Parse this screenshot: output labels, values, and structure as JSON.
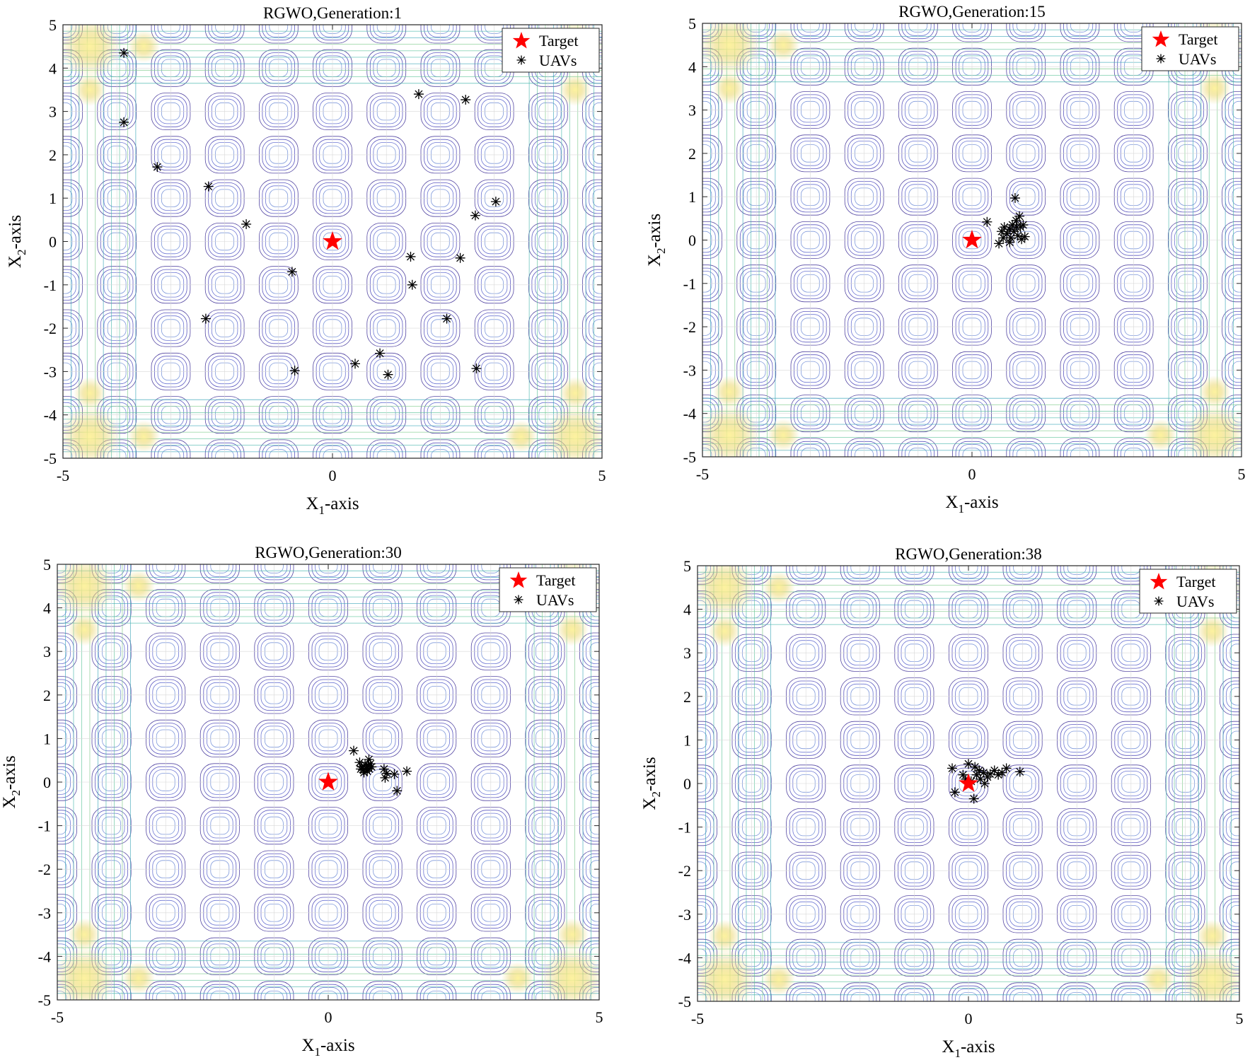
{
  "figure": {
    "axis_label_main": "-axis",
    "x_letter": "X",
    "x_sub": "1",
    "y_letter": "X",
    "y_sub": "2"
  },
  "chart_data": [
    {
      "type": "scatter",
      "title": "RGWO,Generation:1",
      "xlabel": "X1-axis",
      "ylabel": "X2-axis",
      "xlim": [
        -5,
        5
      ],
      "ylim": [
        -5,
        5
      ],
      "xticks": [
        -5,
        0,
        5
      ],
      "yticks": [
        5,
        4,
        3,
        2,
        1,
        0,
        -1,
        -2,
        -3,
        -4,
        -5
      ],
      "legend": {
        "position": "top-right",
        "entries": [
          "Target",
          "UAVs"
        ]
      },
      "background": "contour",
      "series": [
        {
          "name": "Target",
          "marker": "red-star",
          "color": "#ff0000",
          "points": [
            [
              0,
              0
            ]
          ]
        },
        {
          "name": "UAVs",
          "marker": "asterisk",
          "color": "#000000",
          "points": [
            [
              -3.87,
              4.35
            ],
            [
              -3.87,
              2.75
            ],
            [
              -3.25,
              1.72
            ],
            [
              -2.3,
              1.27
            ],
            [
              -1.6,
              0.4
            ],
            [
              -0.75,
              -0.7
            ],
            [
              -2.35,
              -1.78
            ],
            [
              -0.7,
              -2.98
            ],
            [
              0.42,
              -2.82
            ],
            [
              0.88,
              -2.58
            ],
            [
              1.03,
              -3.07
            ],
            [
              1.45,
              -0.35
            ],
            [
              1.48,
              -1.0
            ],
            [
              2.12,
              -1.78
            ],
            [
              2.37,
              -0.38
            ],
            [
              2.65,
              0.6
            ],
            [
              3.03,
              0.92
            ],
            [
              2.67,
              -2.93
            ],
            [
              1.6,
              3.4
            ],
            [
              2.47,
              3.27
            ]
          ]
        }
      ]
    },
    {
      "type": "scatter",
      "title": "RGWO,Generation:15",
      "xlabel": "X1-axis",
      "ylabel": "X2-axis",
      "xlim": [
        -5,
        5
      ],
      "ylim": [
        -5,
        5
      ],
      "xticks": [
        -5,
        0,
        5
      ],
      "yticks": [
        5,
        4,
        3,
        2,
        1,
        0,
        -1,
        -2,
        -3,
        -4,
        -5
      ],
      "legend": {
        "position": "top-right",
        "entries": [
          "Target",
          "UAVs"
        ]
      },
      "background": "contour",
      "series": [
        {
          "name": "Target",
          "marker": "red-star",
          "color": "#ff0000",
          "points": [
            [
              0,
              0
            ]
          ]
        },
        {
          "name": "UAVs",
          "marker": "asterisk",
          "color": "#000000",
          "points": [
            [
              0.8,
              0.97
            ],
            [
              0.28,
              0.42
            ],
            [
              0.5,
              -0.08
            ],
            [
              0.58,
              0.05
            ],
            [
              0.6,
              0.3
            ],
            [
              0.65,
              0.15
            ],
            [
              0.7,
              0.25
            ],
            [
              0.72,
              0.05
            ],
            [
              0.75,
              0.35
            ],
            [
              0.78,
              0.2
            ],
            [
              0.82,
              0.45
            ],
            [
              0.85,
              0.1
            ],
            [
              0.88,
              0.55
            ],
            [
              0.9,
              0.3
            ],
            [
              0.92,
              0.02
            ],
            [
              0.95,
              0.35
            ],
            [
              0.7,
              -0.05
            ],
            [
              0.83,
              0.3
            ],
            [
              0.98,
              0.08
            ],
            [
              0.55,
              0.2
            ]
          ]
        }
      ]
    },
    {
      "type": "scatter",
      "title": "RGWO,Generation:30",
      "xlabel": "X1-axis",
      "ylabel": "X2-axis",
      "xlim": [
        -5,
        5
      ],
      "ylim": [
        -5,
        5
      ],
      "xticks": [
        -5,
        0,
        5
      ],
      "yticks": [
        5,
        4,
        3,
        2,
        1,
        0,
        -1,
        -2,
        -3,
        -4,
        -5
      ],
      "legend": {
        "position": "top-right",
        "entries": [
          "Target",
          "UAVs"
        ]
      },
      "background": "contour",
      "series": [
        {
          "name": "Target",
          "marker": "red-star",
          "color": "#ff0000",
          "points": [
            [
              0,
              0
            ]
          ]
        },
        {
          "name": "UAVs",
          "marker": "asterisk",
          "color": "#000000",
          "points": [
            [
              0.47,
              0.72
            ],
            [
              0.58,
              0.45
            ],
            [
              0.62,
              0.35
            ],
            [
              0.65,
              0.28
            ],
            [
              0.68,
              0.4
            ],
            [
              0.7,
              0.32
            ],
            [
              0.72,
              0.25
            ],
            [
              0.74,
              0.38
            ],
            [
              0.76,
              0.3
            ],
            [
              0.78,
              0.42
            ],
            [
              0.8,
              0.35
            ],
            [
              0.66,
              0.22
            ],
            [
              1.03,
              0.3
            ],
            [
              1.05,
              0.1
            ],
            [
              1.08,
              0.2
            ],
            [
              1.22,
              0.18
            ],
            [
              1.27,
              -0.2
            ],
            [
              1.45,
              0.25
            ],
            [
              0.75,
              0.52
            ],
            [
              0.6,
              0.3
            ]
          ]
        }
      ]
    },
    {
      "type": "scatter",
      "title": "RGWO,Generation:38",
      "xlabel": "X1-axis",
      "ylabel": "X2-axis",
      "xlim": [
        -5,
        5
      ],
      "ylim": [
        -5,
        5
      ],
      "xticks": [
        -5,
        0,
        5
      ],
      "yticks": [
        5,
        4,
        3,
        2,
        1,
        0,
        -1,
        -2,
        -3,
        -4,
        -5
      ],
      "legend": {
        "position": "top-right",
        "entries": [
          "Target",
          "UAVs"
        ]
      },
      "background": "contour",
      "series": [
        {
          "name": "Target",
          "marker": "red-star",
          "color": "#ff0000",
          "points": [
            [
              0,
              0
            ]
          ]
        },
        {
          "name": "UAVs",
          "marker": "asterisk",
          "color": "#000000",
          "points": [
            [
              -0.3,
              0.35
            ],
            [
              -0.25,
              -0.2
            ],
            [
              -0.05,
              0.1
            ],
            [
              0.0,
              0.45
            ],
            [
              0.05,
              0.05
            ],
            [
              0.1,
              -0.35
            ],
            [
              0.15,
              0.2
            ],
            [
              0.2,
              0.3
            ],
            [
              0.22,
              0.1
            ],
            [
              0.28,
              0.25
            ],
            [
              0.3,
              0.0
            ],
            [
              0.35,
              0.15
            ],
            [
              0.4,
              0.22
            ],
            [
              0.48,
              0.3
            ],
            [
              0.55,
              0.2
            ],
            [
              0.62,
              0.25
            ],
            [
              0.7,
              0.35
            ],
            [
              0.95,
              0.27
            ],
            [
              -0.1,
              0.2
            ],
            [
              0.12,
              0.38
            ]
          ]
        }
      ]
    }
  ]
}
